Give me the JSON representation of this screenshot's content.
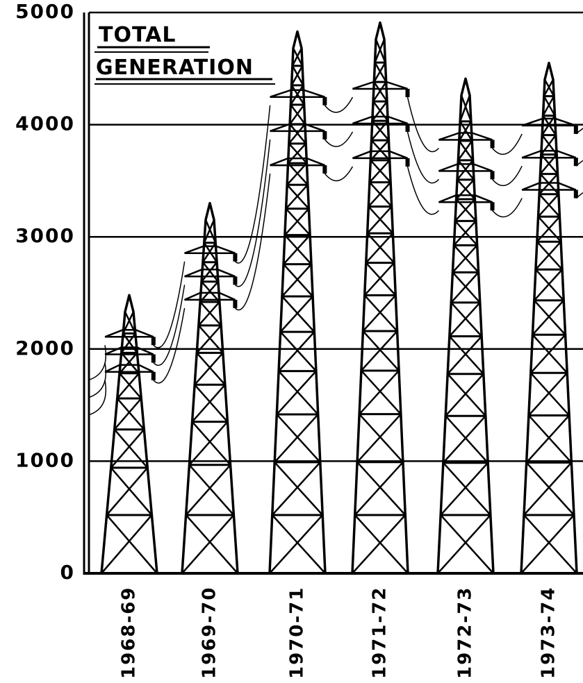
{
  "chart_data": {
    "type": "pictogram-bar",
    "title": [
      "TOTAL",
      "GENERATION"
    ],
    "categories": [
      "1968-69",
      "1969-70",
      "1970-71",
      "1971-72",
      "1972-73",
      "1973-74"
    ],
    "values": [
      2480,
      3300,
      4830,
      4910,
      4410,
      4550
    ],
    "color": "#000000",
    "ylim": [
      0,
      5000
    ],
    "yticks": [
      0,
      1000,
      2000,
      3000,
      4000,
      5000
    ],
    "grid": true
  }
}
